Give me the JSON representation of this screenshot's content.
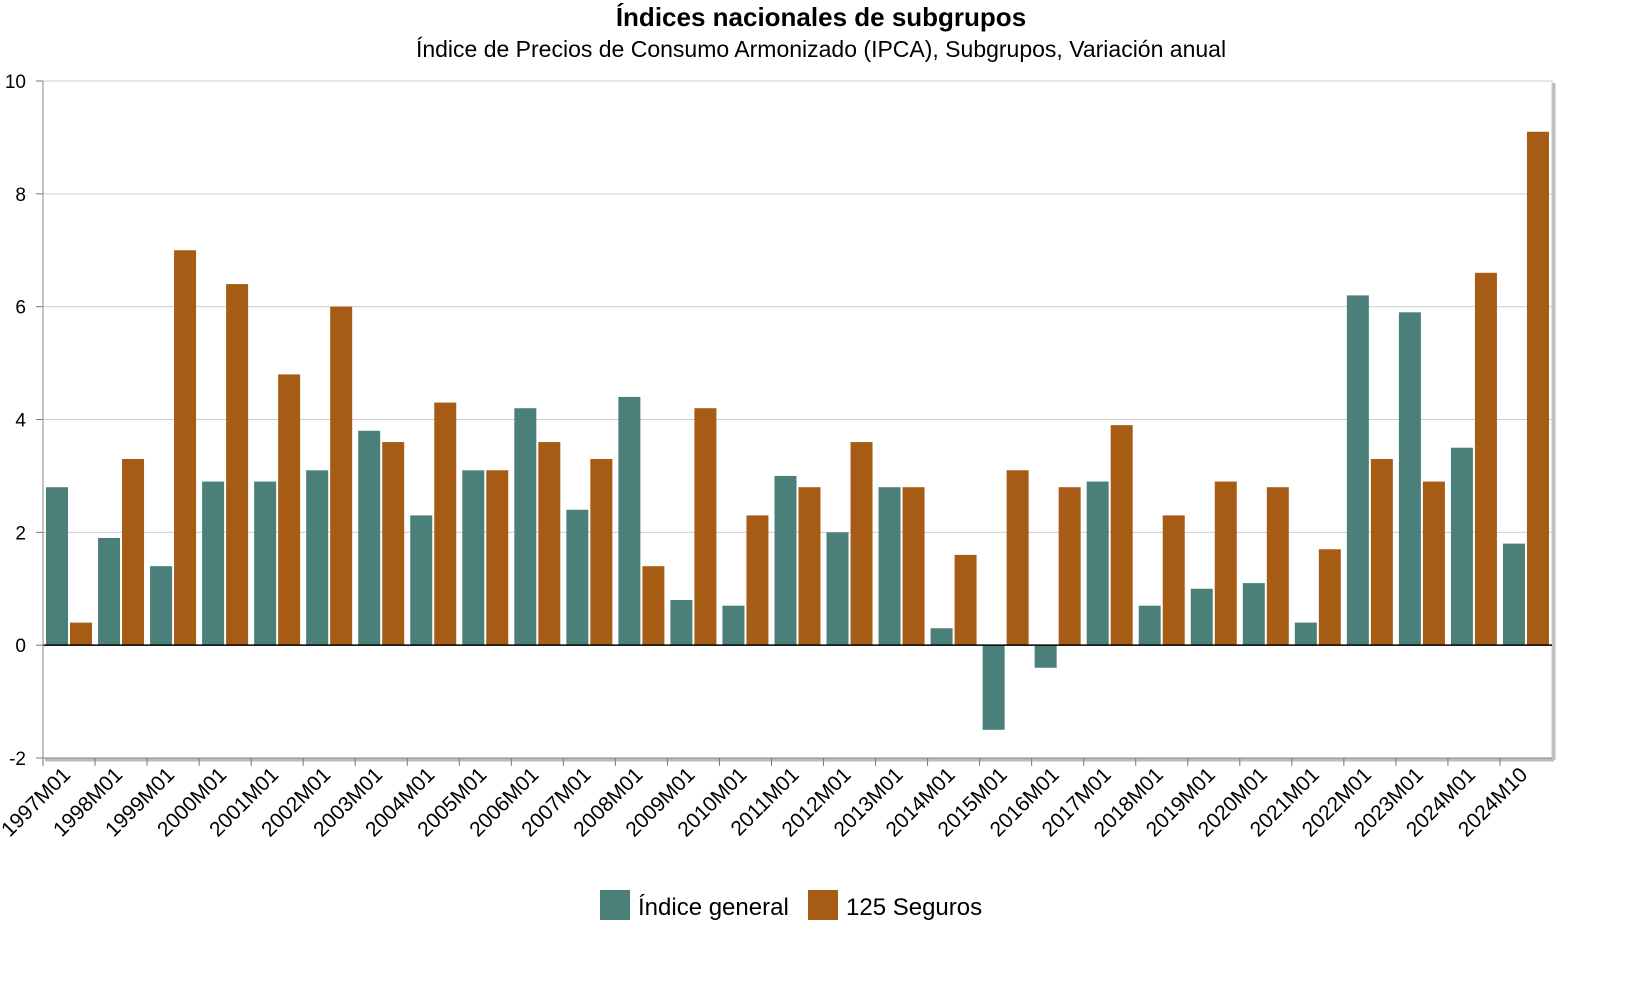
{
  "chart_data": {
    "type": "bar",
    "title": "Índices nacionales de subgrupos",
    "subtitle": "Índice de Precios de Consumo Armonizado (IPCA), Subgrupos, Variación anual",
    "xlabel": "",
    "ylabel": "",
    "ylim": [
      -2,
      10
    ],
    "yticks": [
      -2,
      0,
      2,
      4,
      6,
      8,
      10
    ],
    "grid": true,
    "legend_position": "bottom",
    "categories": [
      "1997M01",
      "1998M01",
      "1999M01",
      "2000M01",
      "2001M01",
      "2002M01",
      "2003M01",
      "2004M01",
      "2005M01",
      "2006M01",
      "2007M01",
      "2008M01",
      "2009M01",
      "2010M01",
      "2011M01",
      "2012M01",
      "2013M01",
      "2014M01",
      "2015M01",
      "2016M01",
      "2017M01",
      "2018M01",
      "2019M01",
      "2020M01",
      "2021M01",
      "2022M01",
      "2023M01",
      "2024M01",
      "2024M10"
    ],
    "series": [
      {
        "name": "Índice general",
        "color": "#4a8079",
        "values": [
          2.8,
          1.9,
          1.4,
          2.9,
          2.9,
          3.1,
          3.8,
          2.3,
          3.1,
          4.2,
          2.4,
          4.4,
          0.8,
          0.7,
          3.0,
          2.0,
          2.8,
          0.3,
          -1.5,
          -0.4,
          2.9,
          0.7,
          1.0,
          1.1,
          0.4,
          6.2,
          5.9,
          3.5,
          1.8
        ]
      },
      {
        "name": "125 Seguros",
        "color": "#a65c14",
        "values": [
          0.4,
          3.3,
          7.0,
          6.4,
          4.8,
          6.0,
          3.6,
          4.3,
          3.1,
          3.6,
          3.3,
          1.4,
          4.2,
          2.3,
          2.8,
          3.6,
          2.8,
          1.6,
          3.1,
          2.8,
          3.9,
          2.3,
          2.9,
          2.8,
          1.7,
          3.3,
          2.9,
          6.6,
          9.1
        ]
      }
    ]
  }
}
